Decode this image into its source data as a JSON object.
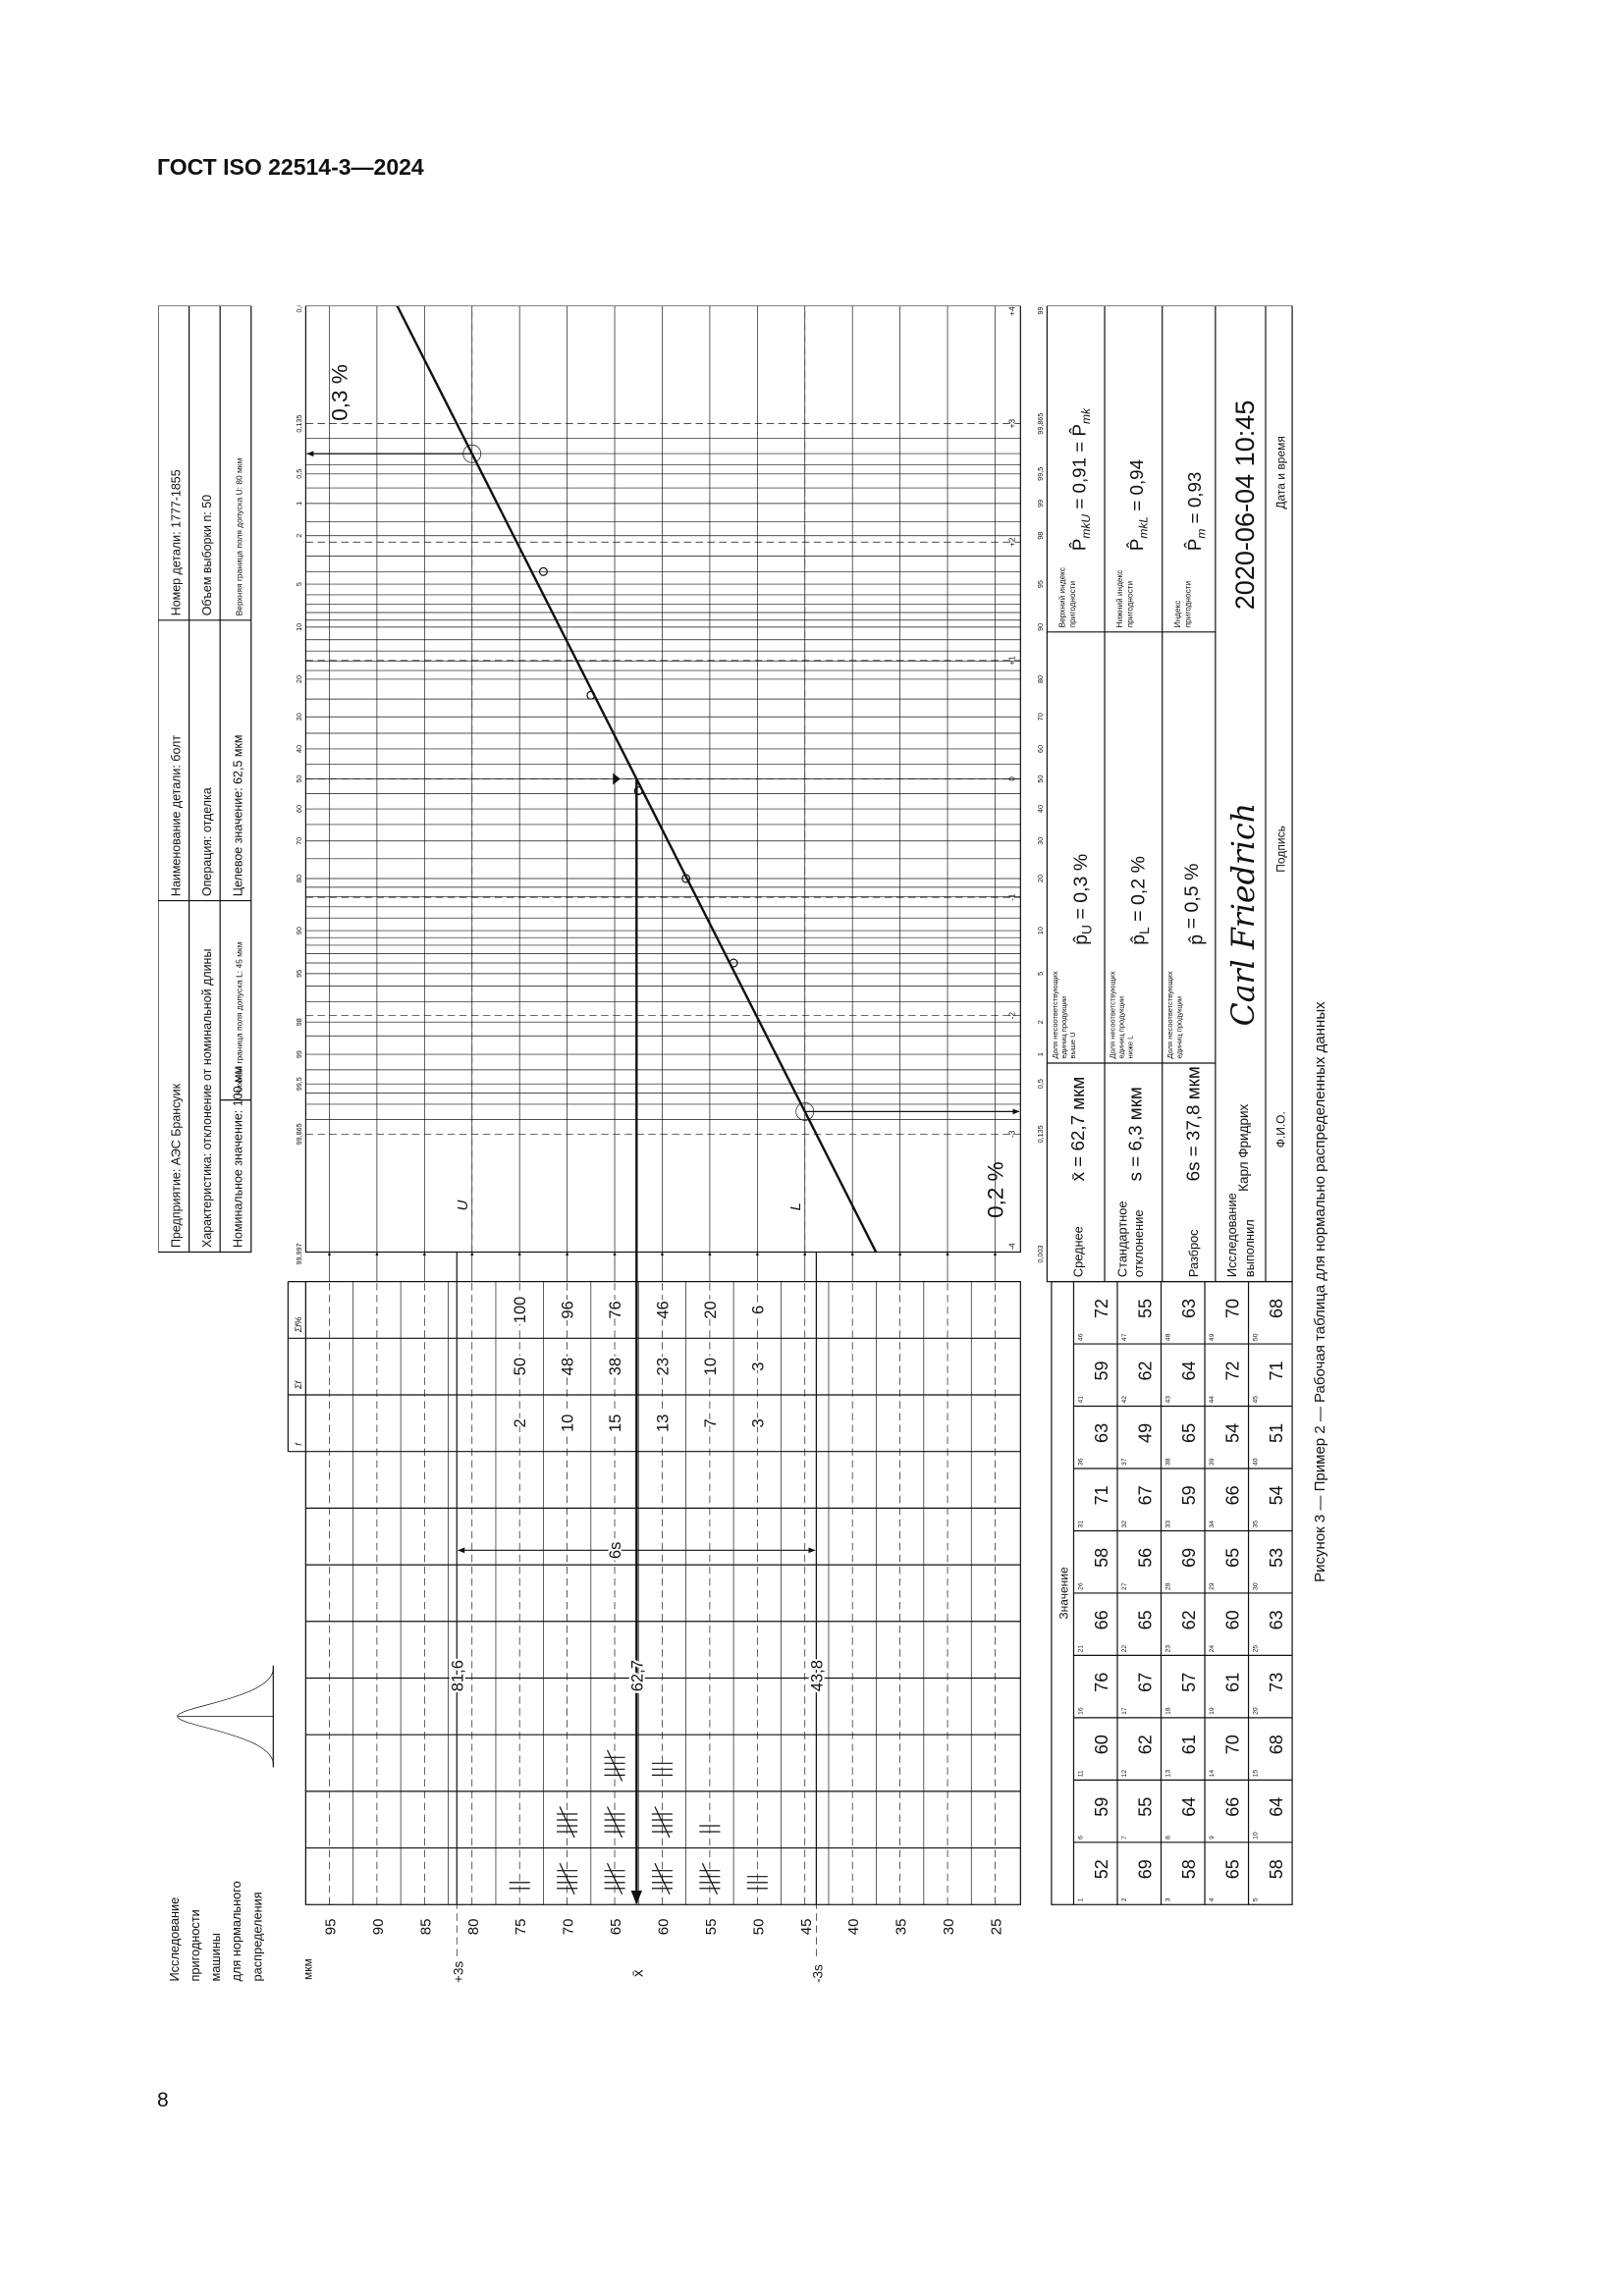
{
  "page": {
    "running_header": "ГОСТ ISO 22514-3—2024",
    "page_number": "8",
    "caption": "Рисунок 3 — Пример 2 — Рабочая таблица для нормально распределенных данных"
  },
  "form": {
    "title_lines": [
      "Исследование",
      "пригодности",
      "машины",
      "для нормального",
      "распределения"
    ],
    "info_table": {
      "rows": [
        [
          "Предприятие: АЭС Брансуик",
          "Наименование детали: болт",
          "Номер детали: 1777-1855"
        ],
        [
          "Характеристика: отклонение от номинальной длины",
          "Операция: отделка",
          "Объем выборки n: 50"
        ],
        [
          "Номинальное значение: 100 мм",
          "Нижняя граница поля допуска L: 45 мкм",
          "Целевое значение: 62,5 мкм",
          "Верхняя граница поля допуска U: 80 мкм"
        ]
      ]
    },
    "tally": {
      "unit": "мкм",
      "axis_values": [
        "95",
        "90",
        "85",
        "80",
        "75",
        "70",
        "65",
        "60",
        "55",
        "50",
        "45",
        "40",
        "35",
        "30",
        "25"
      ],
      "side_labels": {
        "plus3s": "+3s",
        "mean": "x̄",
        "minus3s": "-3s"
      },
      "headers": [
        "f",
        "Σf",
        "Σf%"
      ],
      "classes": [
        {
          "value": 75,
          "f": "2",
          "cum": "50",
          "cum_pct": "100"
        },
        {
          "value": 70,
          "f": "10",
          "cum": "48",
          "cum_pct": "96"
        },
        {
          "value": 65,
          "f": "15",
          "cum": "38",
          "cum_pct": "76"
        },
        {
          "value": 60,
          "f": "13",
          "cum": "23",
          "cum_pct": "46"
        },
        {
          "value": 55,
          "f": "7",
          "cum": "10",
          "cum_pct": "20"
        },
        {
          "value": 50,
          "f": "3",
          "cum": "3",
          "cum_pct": "6"
        }
      ],
      "limit_labels": {
        "upper": "81,6",
        "mean": "62,7",
        "lower": "43,8"
      },
      "spread_label": "6s"
    },
    "results": {
      "rows": [
        {
          "label": [
            "Среднее"
          ],
          "symbol": "x̄",
          "value": " = 62,7 мкм",
          "frac_label": [
            "Доля несоответствующих",
            "единиц продукции",
            "выше U"
          ],
          "frac_symbol": "p̂",
          "frac_sub": "U",
          "frac_value": " = 0,3 %",
          "index_label": [
            "Верхний индекс",
            "пригодности"
          ],
          "index_symbol": "P̂",
          "index_sub": "mkU",
          "index_value": " = 0,91 = ",
          "index_extra": "P̂",
          "index_extra_sub": "mk"
        },
        {
          "label": [
            "Стандартное",
            "отклонение"
          ],
          "symbol": "s",
          "value": " = 6,3 мкм",
          "frac_label": [
            "Доля несоответствующих",
            "единиц продукции",
            "ниже L"
          ],
          "frac_symbol": "p̂",
          "frac_sub": "L",
          "frac_value": " = 0,2 %",
          "index_label": [
            "Нижний индекс",
            "пригодности"
          ],
          "index_symbol": "P̂",
          "index_sub": "mkL",
          "index_value": " = 0,94"
        },
        {
          "label": [
            "Разброс"
          ],
          "symbol": "6s",
          "value": " = 37,8 мкм",
          "frac_label": [
            "Доля несоответствующих",
            "единиц продукции"
          ],
          "frac_symbol": "p̂",
          "frac_sub": "",
          "frac_value": " = 0,5 %",
          "index_label": [
            "Индекс",
            "пригодности"
          ],
          "index_symbol": "P̂",
          "index_sub": "m",
          "index_value": " = 0,93"
        }
      ],
      "performed_by_label": [
        "Исследование",
        "выполнил"
      ],
      "name": "Карл Фридрих",
      "signature": "Carl Friedrich",
      "datetime": "2020-06-04 10:45",
      "footer_labels": [
        "Ф.И.О.",
        "Подпись",
        "Дата и время"
      ]
    },
    "samples": {
      "header": "Значение",
      "rows": [
        [
          52,
          59,
          60,
          76,
          66,
          58,
          71,
          63,
          59,
          72
        ],
        [
          69,
          55,
          62,
          67,
          65,
          56,
          67,
          49,
          62,
          55
        ],
        [
          58,
          64,
          61,
          57,
          62,
          69,
          59,
          65,
          64,
          63
        ],
        [
          65,
          66,
          70,
          61,
          60,
          65,
          66,
          54,
          72,
          70
        ],
        [
          58,
          64,
          68,
          73,
          63,
          53,
          54,
          51,
          71,
          68
        ]
      ]
    }
  },
  "chart_data": {
    "type": "line",
    "scale": "normal probability",
    "value_range": [
      25,
      95
    ],
    "top_axis_ticks": [
      "99,997",
      "99,865",
      "99,5",
      "99",
      "98",
      "95",
      "90",
      "80",
      "70",
      "60",
      "50",
      "40",
      "30",
      "20",
      "10",
      "5",
      "2",
      "1",
      "0,5",
      "0,135",
      "0,003"
    ],
    "bottom_axis_ticks": [
      "0,003",
      "0,135",
      "0,5",
      "1",
      "2",
      "5",
      "10",
      "20",
      "30",
      "40",
      "50",
      "60",
      "70",
      "80",
      "90",
      "95",
      "98",
      "99",
      "99,5",
      "99,865",
      "99,997"
    ],
    "z_ticks": [
      "-4",
      "-3",
      "-2",
      "-1",
      "0",
      "+1",
      "+2",
      "+3",
      "+4"
    ],
    "points": [
      {
        "value": 72.5,
        "cum_pct": 96
      },
      {
        "value": 67.5,
        "cum_pct": 76
      },
      {
        "value": 62.5,
        "cum_pct": 46
      },
      {
        "value": 57.5,
        "cum_pct": 20
      },
      {
        "value": 52.5,
        "cum_pct": 6
      }
    ],
    "fit": {
      "mean": 62.7,
      "s": 6.3
    },
    "U": 80,
    "L": 45,
    "annotations": {
      "upper_fraction": "0,3 %",
      "lower_fraction": "0,2 %",
      "U": "U",
      "L": "L"
    }
  }
}
